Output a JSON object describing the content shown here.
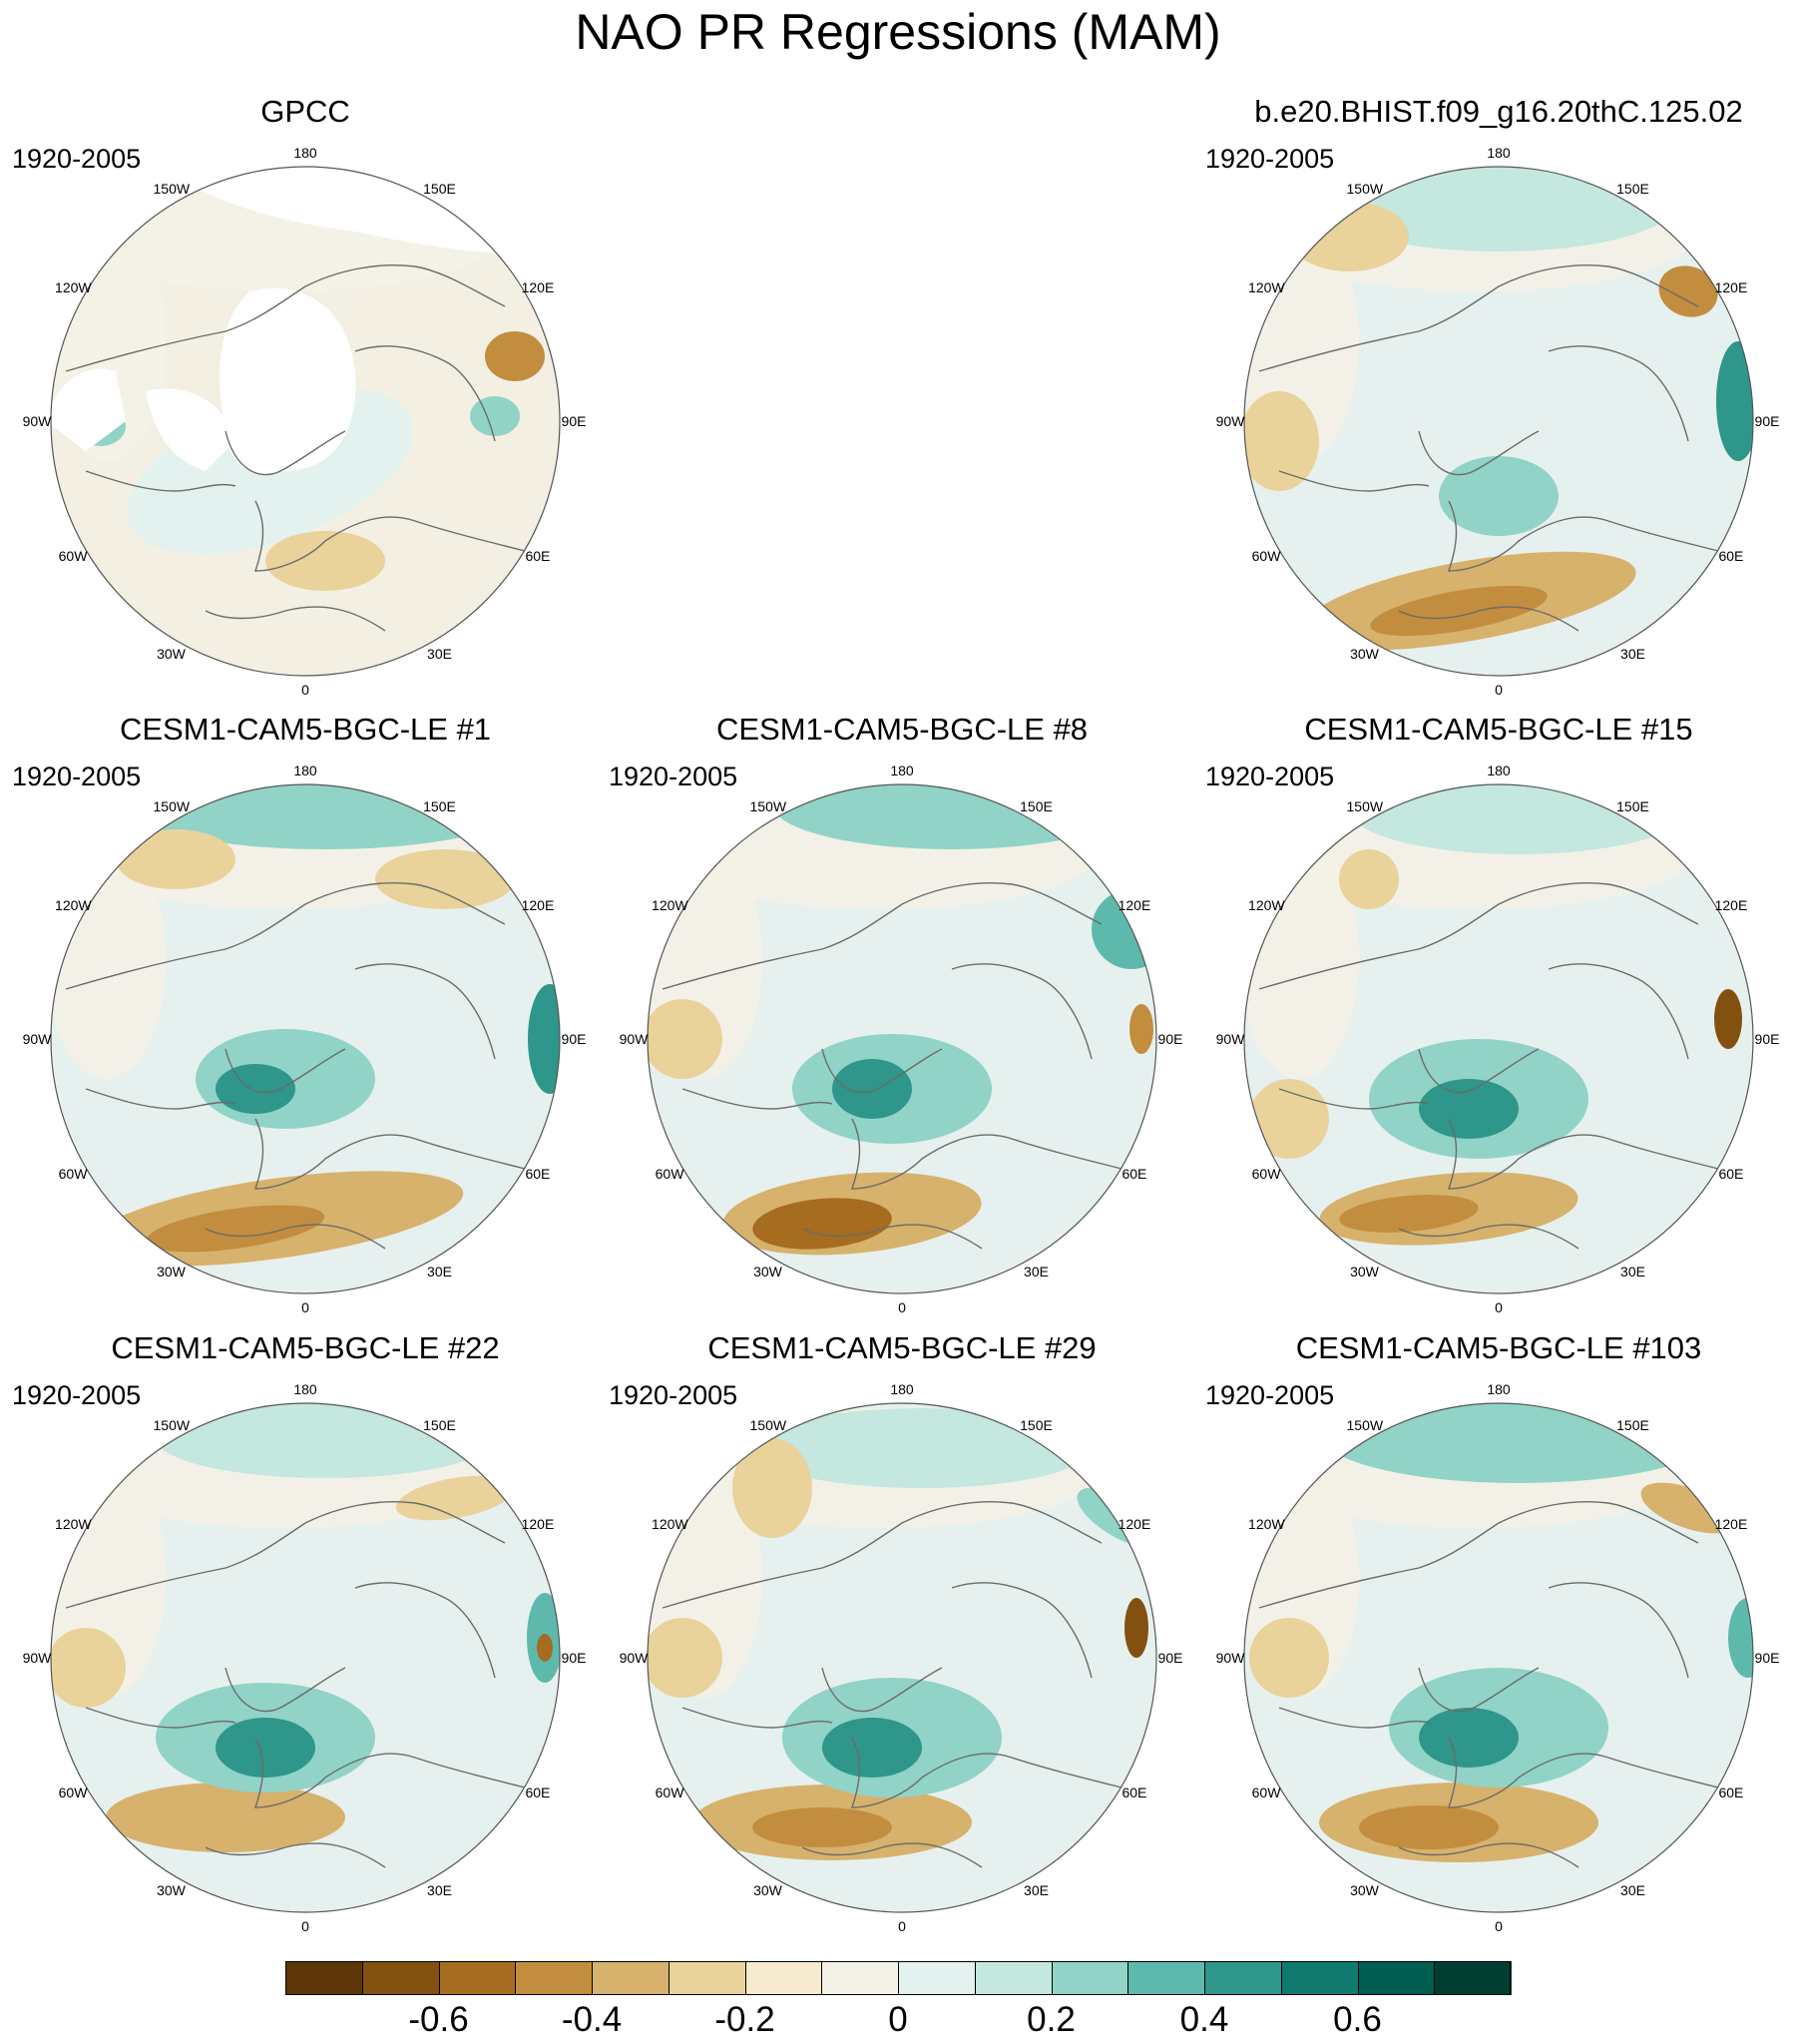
{
  "title": "NAO PR Regressions (MAM)",
  "period": "1920-2005",
  "colors": {
    "coast": "#6b6b6b",
    "border": "#555555",
    "land_missing": "#ffffff",
    "neutral": "#e6f1ef"
  },
  "lon_labels": [
    "180",
    "150E",
    "120E",
    "90E",
    "60E",
    "30E",
    "0",
    "30W",
    "60W",
    "90W",
    "120W",
    "150W"
  ],
  "panels": [
    {
      "title": "GPCC",
      "masked": true
    },
    {
      "title": "b.e20.BHIST.f09_g16.20thC.125.02",
      "masked": false
    },
    {
      "title": "CESM1-CAM5-BGC-LE #1",
      "masked": false
    },
    {
      "title": "CESM1-CAM5-BGC-LE #8",
      "masked": false
    },
    {
      "title": "CESM1-CAM5-BGC-LE #15",
      "masked": false
    },
    {
      "title": "CESM1-CAM5-BGC-LE #22",
      "masked": false
    },
    {
      "title": "CESM1-CAM5-BGC-LE #29",
      "masked": false
    },
    {
      "title": "CESM1-CAM5-BGC-LE #103",
      "masked": false
    }
  ],
  "colorbar": {
    "colors": [
      "#5c3608",
      "#83510f",
      "#a66c1f",
      "#c28d3e",
      "#d7b26c",
      "#ead29b",
      "#f6ead0",
      "#f4f1e6",
      "#e3f1ef",
      "#c4e7e0",
      "#91d3c7",
      "#5eb9ad",
      "#2e968a",
      "#107a6e",
      "#005e50",
      "#013e31"
    ],
    "tick_labels": [
      "-0.6",
      "-0.4",
      "-0.2",
      "0",
      "0.2",
      "0.4",
      "0.6"
    ],
    "tick_at_boundary": [
      2,
      4,
      6,
      8,
      10,
      12,
      14
    ]
  }
}
